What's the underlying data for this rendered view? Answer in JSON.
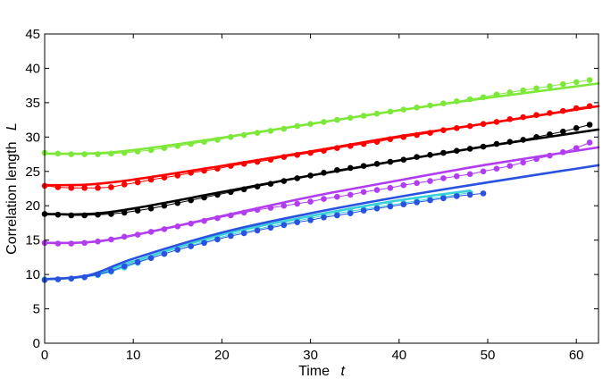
{
  "chart_data": {
    "type": "line",
    "xlabel": {
      "name": "Time",
      "symbol": "t"
    },
    "ylabel": {
      "name": "Correlation length",
      "symbol": "L"
    },
    "xlim": [
      0,
      62.5
    ],
    "ylim": [
      0,
      45
    ],
    "xticks": [
      0,
      10,
      20,
      30,
      40,
      50,
      60
    ],
    "yticks": [
      0,
      5,
      10,
      15,
      20,
      25,
      30,
      35,
      40,
      45
    ],
    "grid": false,
    "legend": "none",
    "series": [
      {
        "color": "#7ee83a",
        "fit_x": [
          0,
          5,
          10,
          20,
          30,
          40,
          50,
          62.5
        ],
        "fit_y": [
          27.6,
          27.6,
          28.1,
          29.9,
          31.9,
          33.9,
          35.7,
          37.8
        ],
        "x": [
          0,
          1.5,
          3,
          4.5,
          6,
          7.5,
          9,
          10.5,
          12,
          13.5,
          15,
          16.5,
          18,
          19.5,
          21,
          22.5,
          24,
          25.5,
          27,
          28.5,
          30,
          31.5,
          33,
          34.5,
          36,
          37.5,
          39,
          40.5,
          42,
          43.5,
          45,
          46.5,
          48,
          49.5,
          51,
          52.5,
          54,
          55.5,
          57,
          58.5,
          60,
          61.5
        ],
        "y": [
          27.7,
          27.6,
          27.5,
          27.5,
          27.5,
          27.6,
          27.7,
          27.9,
          28.1,
          28.4,
          28.7,
          29.0,
          29.3,
          29.6,
          30.0,
          30.3,
          30.6,
          30.9,
          31.2,
          31.6,
          31.9,
          32.2,
          32.5,
          32.8,
          33.1,
          33.4,
          33.7,
          34.0,
          34.3,
          34.6,
          34.9,
          35.2,
          35.5,
          35.8,
          36.2,
          36.5,
          36.8,
          37.1,
          37.4,
          37.7,
          38.0,
          38.3
        ]
      },
      {
        "color": "#ff0000",
        "fit_x": [
          0,
          5,
          10,
          20,
          30,
          40,
          50,
          62.5
        ],
        "fit_y": [
          23.0,
          23.1,
          23.8,
          25.8,
          27.9,
          30.1,
          32.0,
          34.5
        ],
        "x": [
          0,
          1.5,
          3,
          4.5,
          6,
          7.5,
          9,
          10.5,
          12,
          13.5,
          15,
          16.5,
          18,
          19.5,
          21,
          22.5,
          24,
          25.5,
          27,
          28.5,
          30,
          31.5,
          33,
          34.5,
          36,
          37.5,
          39,
          40.5,
          42,
          43.5,
          45,
          46.5,
          48,
          49.5,
          51,
          52.5,
          54,
          55.5,
          57,
          58.5,
          60,
          61.5
        ],
        "y": [
          22.9,
          22.7,
          22.6,
          22.6,
          22.6,
          22.7,
          23.1,
          23.4,
          23.8,
          24.1,
          24.4,
          24.8,
          25.1,
          25.4,
          25.8,
          26.1,
          26.4,
          26.7,
          27.1,
          27.4,
          27.7,
          28.0,
          28.4,
          28.7,
          29.0,
          29.3,
          29.7,
          30.0,
          30.3,
          30.6,
          31.0,
          31.3,
          31.6,
          31.9,
          32.2,
          32.6,
          32.9,
          33.2,
          33.5,
          33.8,
          34.2,
          34.5
        ]
      },
      {
        "color": "#000000",
        "fit_x": [
          0,
          5,
          10,
          20,
          30,
          40,
          50,
          62.5
        ],
        "fit_y": [
          18.8,
          18.8,
          19.6,
          22.0,
          24.4,
          26.6,
          28.7,
          31.1
        ],
        "x": [
          0,
          1.5,
          3,
          4.5,
          6,
          7.5,
          9,
          10.5,
          12,
          13.5,
          15,
          16.5,
          18,
          19.5,
          21,
          22.5,
          24,
          25.5,
          27,
          28.5,
          30,
          31.5,
          33,
          34.5,
          36,
          37.5,
          39,
          40.5,
          42,
          43.5,
          45,
          46.5,
          48,
          49.5,
          51,
          52.5,
          54,
          55.5,
          57,
          58.5,
          60,
          61.5
        ],
        "y": [
          18.8,
          18.7,
          18.6,
          18.6,
          18.7,
          18.8,
          19.0,
          19.3,
          19.6,
          20.0,
          20.4,
          20.8,
          21.2,
          21.6,
          22.0,
          22.4,
          22.8,
          23.2,
          23.6,
          24.0,
          24.4,
          24.8,
          25.2,
          25.5,
          25.8,
          26.1,
          26.4,
          26.7,
          27.1,
          27.4,
          27.7,
          28.0,
          28.3,
          28.6,
          29.0,
          29.3,
          29.6,
          30.0,
          30.4,
          30.8,
          31.3,
          31.8
        ]
      },
      {
        "color": "#b23df0",
        "fit_x": [
          0,
          5,
          10,
          20,
          30,
          40,
          50,
          62.5
        ],
        "fit_y": [
          14.6,
          14.7,
          15.7,
          18.5,
          21.3,
          23.7,
          26.0,
          28.5
        ],
        "x": [
          0,
          1.5,
          3,
          4.5,
          6,
          7.5,
          9,
          10.5,
          12,
          13.5,
          15,
          16.5,
          18,
          19.5,
          21,
          22.5,
          24,
          25.5,
          27,
          28.5,
          30,
          31.5,
          33,
          34.5,
          36,
          37.5,
          39,
          40.5,
          42,
          43.5,
          45,
          46.5,
          48,
          49.5,
          51,
          52.5,
          54,
          55.5,
          57,
          58.5,
          60,
          61.5
        ],
        "y": [
          14.6,
          14.5,
          14.5,
          14.6,
          14.8,
          15.1,
          15.5,
          15.8,
          16.2,
          16.6,
          17.0,
          17.4,
          17.8,
          18.2,
          18.6,
          19.0,
          19.4,
          19.7,
          20.0,
          20.3,
          20.6,
          21.0,
          21.3,
          21.6,
          22.0,
          22.3,
          22.6,
          23.0,
          23.3,
          23.6,
          24.0,
          24.3,
          24.6,
          25.0,
          25.4,
          25.8,
          26.3,
          26.8,
          27.3,
          27.8,
          28.4,
          29.2
        ]
      },
      {
        "color": "#3ad0d8",
        "fit_x": [
          0,
          5,
          10,
          20,
          30,
          40,
          48
        ],
        "fit_y": [
          9.3,
          9.8,
          11.9,
          15.8,
          18.5,
          20.8,
          22.2
        ],
        "x": [
          0,
          1.5,
          3,
          4.5,
          6,
          7.5,
          9,
          10.5,
          12,
          13.5,
          15,
          16.5,
          18,
          19.5,
          21,
          22.5,
          24,
          25.5,
          27,
          28.5,
          30,
          31.5,
          33,
          34.5,
          36,
          37.5,
          39,
          40.5,
          42,
          43.5,
          45,
          46.5,
          48
        ],
        "y": [
          9.3,
          9.3,
          9.4,
          9.6,
          9.9,
          10.4,
          11.0,
          11.7,
          12.4,
          13.0,
          13.6,
          14.2,
          14.8,
          15.3,
          15.8,
          16.2,
          16.6,
          17.0,
          17.4,
          17.8,
          18.2,
          18.5,
          18.9,
          19.2,
          19.5,
          19.8,
          20.1,
          20.4,
          20.7,
          21.0,
          21.3,
          21.6,
          21.9
        ]
      },
      {
        "color": "#2952e0",
        "fit_x": [
          0,
          5,
          10,
          20,
          30,
          40,
          50,
          62.5
        ],
        "fit_y": [
          9.3,
          9.9,
          12.3,
          16.1,
          18.9,
          21.3,
          23.4,
          25.9
        ],
        "x": [
          0,
          1.5,
          3,
          4.5,
          6,
          7.5,
          9,
          10.5,
          12,
          13.5,
          15,
          16.5,
          18,
          19.5,
          21,
          22.5,
          24,
          25.5,
          27,
          28.5,
          30,
          31.5,
          33,
          34.5,
          36,
          37.5,
          39,
          40.5,
          42,
          43.5,
          45,
          46.5,
          48,
          49.5
        ],
        "y": [
          9.2,
          9.3,
          9.4,
          9.6,
          10.0,
          10.5,
          11.2,
          11.8,
          12.4,
          13.0,
          13.6,
          14.1,
          14.6,
          15.1,
          15.6,
          16.0,
          16.4,
          16.8,
          17.2,
          17.6,
          17.9,
          18.3,
          18.6,
          18.9,
          19.3,
          19.6,
          19.9,
          20.2,
          20.5,
          20.8,
          21.1,
          21.4,
          21.6,
          21.8
        ]
      }
    ]
  }
}
